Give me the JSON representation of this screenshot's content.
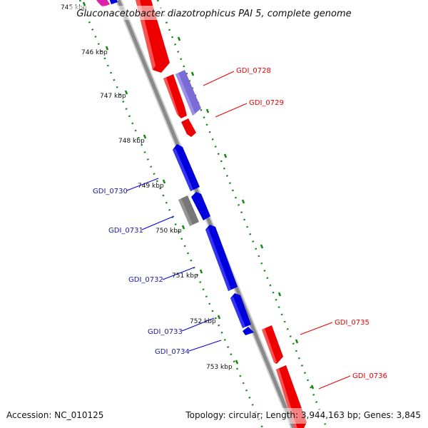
{
  "title": "Gluconacetobacter diazotrophicus PAI 5, complete genome",
  "footer": {
    "accession": "Accession: NC_010125",
    "summary": "Topology: circular; Length: 3,944,163 bp; Genes: 3,845"
  },
  "colors": {
    "forward": "#ee0000",
    "reverse": "#0000dd",
    "reverse_label": "#1a1aa6",
    "other": "#777777",
    "purple": "#7a6bd6",
    "magenta": "#dd22aa",
    "tick": "#118811",
    "backbone": "#888888"
  },
  "scale_ticks": [
    "745 kbp",
    "746 kbp",
    "747 kbp",
    "748 kbp",
    "749 kbp",
    "750 kbp",
    "751 kbp",
    "752 kbp",
    "753 kbp"
  ],
  "genes": {
    "forward": [
      {
        "label": "GDI_0728",
        "color": "purple"
      },
      {
        "label": "GDI_0729",
        "color": "forward"
      },
      {
        "label": "GDI_0735",
        "color": "forward"
      },
      {
        "label": "GDI_0736",
        "color": "forward"
      }
    ],
    "reverse": [
      {
        "label": "GDI_0730",
        "color": "reverse"
      },
      {
        "label": "GDI_0731",
        "color": "other"
      },
      {
        "label": "GDI_0732",
        "color": "reverse"
      },
      {
        "label": "GDI_0733",
        "color": "reverse"
      },
      {
        "label": "GDI_0734",
        "color": "reverse"
      }
    ]
  }
}
